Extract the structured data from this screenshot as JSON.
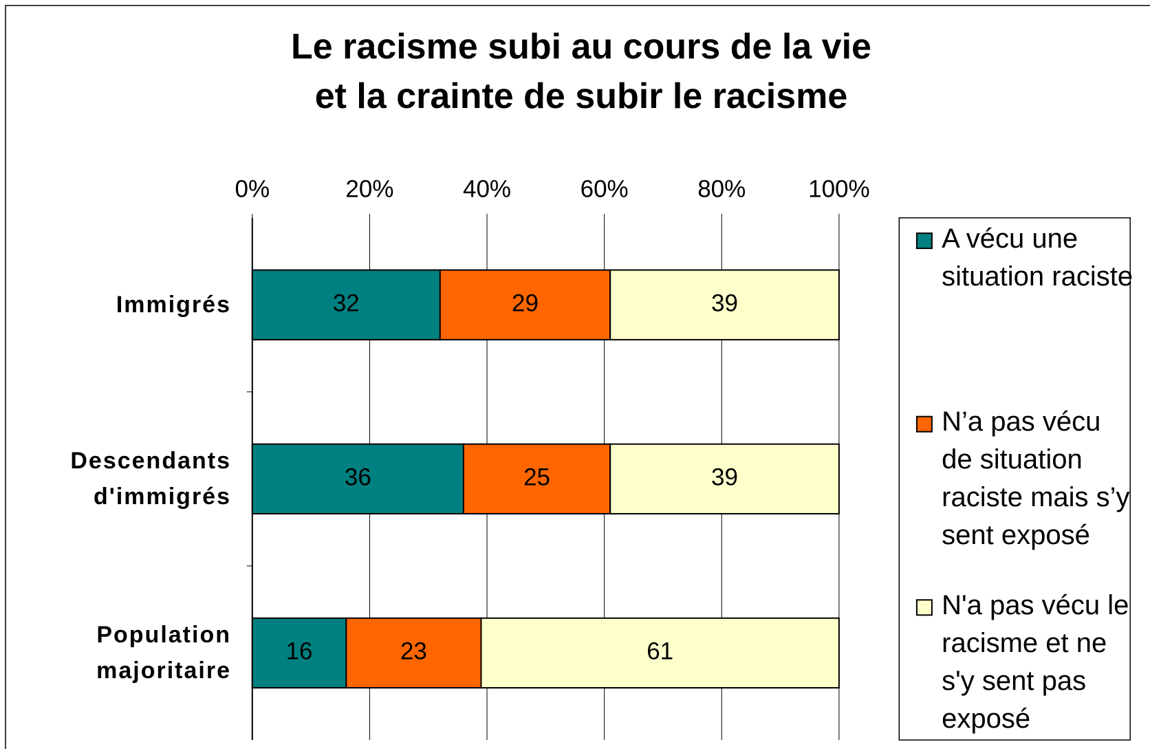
{
  "chart_data": {
    "type": "stacked_bar_horizontal",
    "title": [
      "Le racisme subi au cours de la vie",
      "et la crainte de subir le racisme"
    ],
    "categories": [
      "Immigrés",
      "Descendants d'immigrés",
      "Population majoritaire"
    ],
    "series": [
      {
        "name": "A vécu une situation raciste",
        "color": "#008080",
        "values": [
          32,
          36,
          16
        ]
      },
      {
        "name": "N’a pas vécu de situation raciste mais s’y sent exposé",
        "color": "#ff6600",
        "values": [
          29,
          25,
          23
        ]
      },
      {
        "name": "N'a pas vécu le racisme et ne s'y sent pas exposé",
        "color": "#ffffcc",
        "values": [
          39,
          39,
          61
        ]
      }
    ],
    "xlim": [
      0,
      100
    ],
    "xticks": [
      {
        "value": 0,
        "label": "0%"
      },
      {
        "value": 20,
        "label": "20%"
      },
      {
        "value": 40,
        "label": "40%"
      },
      {
        "value": 60,
        "label": "60%"
      },
      {
        "value": 80,
        "label": "80%"
      },
      {
        "value": 100,
        "label": "100%"
      }
    ],
    "grid": true,
    "legend": "right"
  }
}
